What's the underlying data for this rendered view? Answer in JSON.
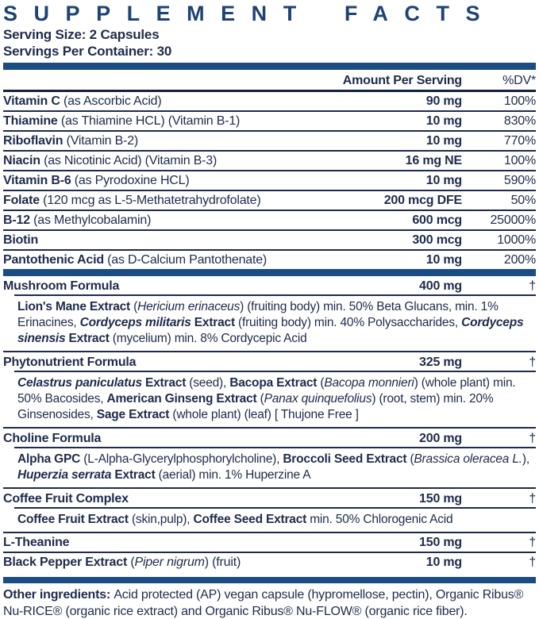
{
  "title": "SUPPLEMENT FACTS",
  "serving_size": "Serving Size: 2 Capsules",
  "servings_per_container": "Servings Per Container: 30",
  "columns": {
    "amount": "Amount Per Serving",
    "dv": "%DV*"
  },
  "colors": {
    "navy_text": "#1e2b4b",
    "bar_blue": "#1b4c82",
    "title_blue": "#1e4374"
  },
  "vitamin_rows": [
    {
      "segments": [
        {
          "t": "Vitamin C ",
          "s": "b"
        },
        {
          "t": "(as Ascorbic Acid)",
          "s": ""
        }
      ],
      "amount": "90 mg",
      "dv": "100%"
    },
    {
      "segments": [
        {
          "t": "Thiamine ",
          "s": "b"
        },
        {
          "t": "(as Thiamine HCL) (Vitamin B-1)",
          "s": ""
        }
      ],
      "amount": "10 mg",
      "dv": "830%"
    },
    {
      "segments": [
        {
          "t": "Riboflavin ",
          "s": "b"
        },
        {
          "t": "(Vitamin B-2)",
          "s": ""
        }
      ],
      "amount": "10 mg",
      "dv": "770%"
    },
    {
      "segments": [
        {
          "t": "Niacin ",
          "s": "b"
        },
        {
          "t": "(as Nicotinic Acid) (Vitamin B-3)",
          "s": ""
        }
      ],
      "amount": "16 mg NE",
      "dv": "100%"
    },
    {
      "segments": [
        {
          "t": "Vitamin B-6 ",
          "s": "b"
        },
        {
          "t": "(as Pyrodoxine HCL)",
          "s": ""
        }
      ],
      "amount": "10 mg",
      "dv": "590%"
    },
    {
      "segments": [
        {
          "t": "Folate ",
          "s": "b"
        },
        {
          "t": "(120 mcg as L-5-Methatetrahydrofolate)",
          "s": ""
        }
      ],
      "amount": "200 mcg DFE",
      "dv": "50%"
    },
    {
      "segments": [
        {
          "t": "B-12 ",
          "s": "b"
        },
        {
          "t": "(as Methylcobalamin)",
          "s": ""
        }
      ],
      "amount": "600 mcg",
      "dv": "25000%"
    },
    {
      "segments": [
        {
          "t": "Biotin",
          "s": "b"
        }
      ],
      "amount": "300 mcg",
      "dv": "1000%"
    },
    {
      "segments": [
        {
          "t": "Pantothenic Acid ",
          "s": "b"
        },
        {
          "t": "(as D-Calcium Pantothenate)",
          "s": ""
        }
      ],
      "amount": "10 mg",
      "dv": "200%"
    }
  ],
  "formula_sections": [
    {
      "header": {
        "segments": [
          {
            "t": "Mushroom Formula",
            "s": "b"
          }
        ],
        "amount": "400 mg",
        "dv": "†"
      },
      "ingredients": [
        {
          "t": "Lion's Mane Extract",
          "s": "b"
        },
        {
          "t": " (",
          "s": ""
        },
        {
          "t": "Hericium erinaceus",
          "s": "i"
        },
        {
          "t": ") (fruiting body) min. 50% Beta Glucans, min. 1% Erinacines, ",
          "s": ""
        },
        {
          "t": "Cordyceps militaris",
          "s": "bi"
        },
        {
          "t": " Extract",
          "s": "b"
        },
        {
          "t": " (fruiting body) min. 40% Polysaccharides, ",
          "s": ""
        },
        {
          "t": "Cordyceps sinensis",
          "s": "bi"
        },
        {
          "t": " Extract",
          "s": "b"
        },
        {
          "t": " (mycelium) min. 8% Cordycepic Acid",
          "s": ""
        }
      ]
    },
    {
      "header": {
        "segments": [
          {
            "t": "Phytonutrient Formula",
            "s": "b"
          }
        ],
        "amount": "325 mg",
        "dv": "†"
      },
      "ingredients": [
        {
          "t": "Celastrus paniculatus",
          "s": "bi"
        },
        {
          "t": " Extract",
          "s": "b"
        },
        {
          "t": " (seed), ",
          "s": ""
        },
        {
          "t": "Bacopa Extract",
          "s": "b"
        },
        {
          "t": " (",
          "s": ""
        },
        {
          "t": "Bacopa monnieri",
          "s": "i"
        },
        {
          "t": ") (whole plant) min. 50% Bacosides, ",
          "s": ""
        },
        {
          "t": "American Ginseng Extract",
          "s": "b"
        },
        {
          "t": " (",
          "s": ""
        },
        {
          "t": "Panax quinquefolius",
          "s": "i"
        },
        {
          "t": ") (root, stem) min. 20% Ginsenosides, ",
          "s": ""
        },
        {
          "t": "Sage Extract",
          "s": "b"
        },
        {
          "t": " (whole plant) (leaf) [ Thujone Free ]",
          "s": ""
        }
      ]
    },
    {
      "header": {
        "segments": [
          {
            "t": "Choline Formula",
            "s": "b"
          }
        ],
        "amount": "200 mg",
        "dv": "†"
      },
      "ingredients": [
        {
          "t": "Alpha GPC",
          "s": "b"
        },
        {
          "t": " (L-Alpha-Glycerylphosphorylcholine), ",
          "s": ""
        },
        {
          "t": "Broccoli Seed Extract",
          "s": "b"
        },
        {
          "t": " (",
          "s": ""
        },
        {
          "t": "Brassica oleracea L.",
          "s": "i"
        },
        {
          "t": "), ",
          "s": ""
        },
        {
          "t": "Huperzia serrata",
          "s": "bi"
        },
        {
          "t": " Extract",
          "s": "b"
        },
        {
          "t": " (aerial) min. 1% Huperzine A",
          "s": ""
        }
      ]
    },
    {
      "header": {
        "segments": [
          {
            "t": "Coffee Fruit Complex",
            "s": "b"
          }
        ],
        "amount": "150 mg",
        "dv": "†"
      },
      "ingredients": [
        {
          "t": "Coffee Fruit Extract",
          "s": "b"
        },
        {
          "t": " (skin,pulp), ",
          "s": ""
        },
        {
          "t": "Coffee Seed Extract",
          "s": "b"
        },
        {
          "t": " min. 50% Chlorogenic Acid",
          "s": ""
        }
      ]
    }
  ],
  "end_rows": [
    {
      "segments": [
        {
          "t": "L-Theanine",
          "s": "b"
        }
      ],
      "amount": "150 mg",
      "dv": "†"
    },
    {
      "segments": [
        {
          "t": "Black Pepper Extract",
          "s": "b"
        },
        {
          "t": " (",
          "s": ""
        },
        {
          "t": "Piper nigrum",
          "s": "i"
        },
        {
          "t": ") (fruit)",
          "s": ""
        }
      ],
      "amount": "10 mg",
      "dv": "†"
    }
  ],
  "other_ingredients": [
    {
      "t": "Other ingredients: ",
      "s": "b"
    },
    {
      "t": "Acid protected (AP) vegan capsule (hypromellose, pectin), Organic Ribus® Nu-RICE® (organic rice extract) and Organic Ribus® Nu-FLOW® (organic rice fiber).",
      "s": ""
    }
  ]
}
